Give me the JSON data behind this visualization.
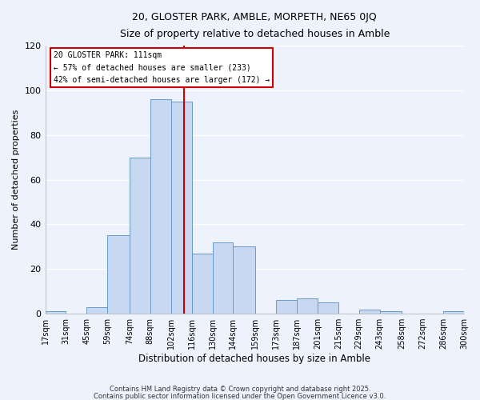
{
  "title": "20, GLOSTER PARK, AMBLE, MORPETH, NE65 0JQ",
  "subtitle": "Size of property relative to detached houses in Amble",
  "xlabel": "Distribution of detached houses by size in Amble",
  "ylabel": "Number of detached properties",
  "bar_color": "#c8d8f0",
  "bar_edge_color": "#6699cc",
  "background_color": "#eef2fc",
  "grid_color": "#ffffff",
  "bin_labels": [
    "17sqm",
    "31sqm",
    "45sqm",
    "59sqm",
    "74sqm",
    "88sqm",
    "102sqm",
    "116sqm",
    "130sqm",
    "144sqm",
    "159sqm",
    "173sqm",
    "187sqm",
    "201sqm",
    "215sqm",
    "229sqm",
    "243sqm",
    "258sqm",
    "272sqm",
    "286sqm",
    "300sqm"
  ],
  "bin_edges": [
    17,
    31,
    45,
    59,
    74,
    88,
    102,
    116,
    130,
    144,
    159,
    173,
    187,
    201,
    215,
    229,
    243,
    258,
    272,
    286,
    300
  ],
  "counts": [
    1,
    0,
    3,
    35,
    70,
    96,
    95,
    27,
    32,
    30,
    0,
    6,
    7,
    5,
    0,
    2,
    1,
    0,
    0,
    1
  ],
  "vline_x": 111,
  "vline_color": "#cc0000",
  "ylim": [
    0,
    120
  ],
  "yticks": [
    0,
    20,
    40,
    60,
    80,
    100,
    120
  ],
  "legend_title": "20 GLOSTER PARK: 111sqm",
  "legend_line1": "← 57% of detached houses are smaller (233)",
  "legend_line2": "42% of semi-detached houses are larger (172) →",
  "legend_box_color": "#ffffff",
  "legend_border_color": "#cc0000",
  "footer1": "Contains HM Land Registry data © Crown copyright and database right 2025.",
  "footer2": "Contains public sector information licensed under the Open Government Licence v3.0."
}
